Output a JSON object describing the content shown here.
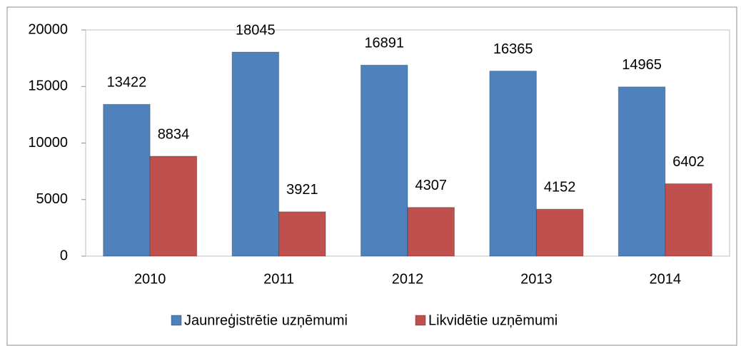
{
  "chart_data": {
    "type": "bar",
    "categories": [
      "2010",
      "2011",
      "2012",
      "2013",
      "2014"
    ],
    "series": [
      {
        "name": "Jaunreģistrētie uzņēmumi",
        "color": "#4f81bd",
        "values": [
          13422,
          18045,
          16891,
          16365,
          14965
        ]
      },
      {
        "name": "Likvidētie uzņēmumi",
        "color": "#c0504d",
        "values": [
          8834,
          3921,
          4307,
          4152,
          6402
        ]
      }
    ],
    "ylim": [
      0,
      20000
    ],
    "yticks": [
      0,
      5000,
      10000,
      15000,
      20000
    ],
    "grid": false,
    "legend": "bottom"
  }
}
